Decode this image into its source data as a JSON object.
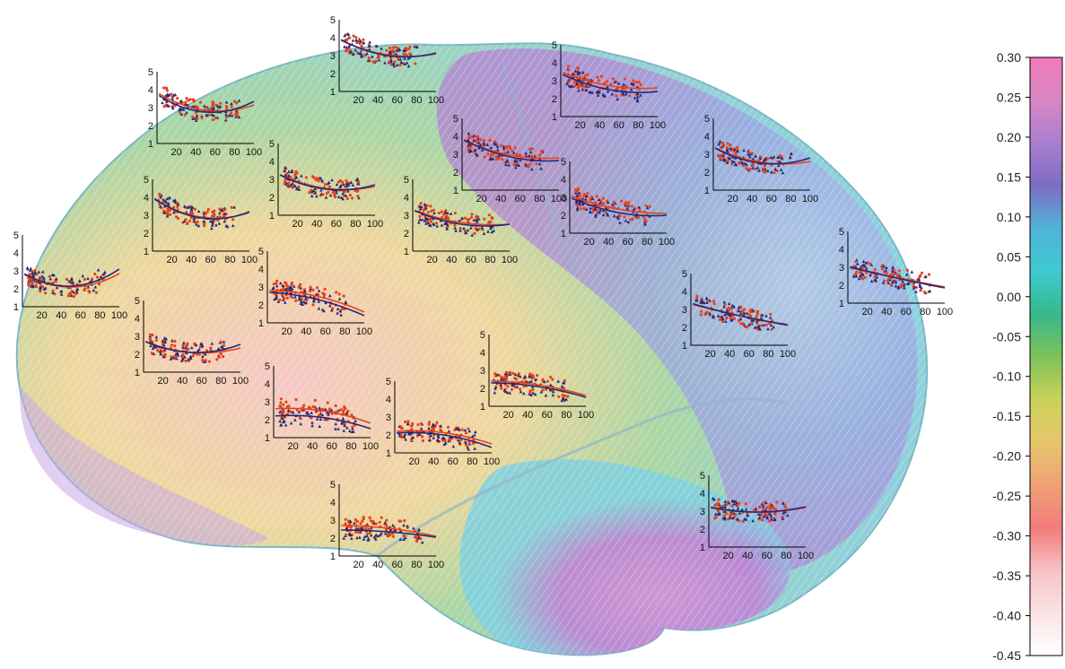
{
  "colors": {
    "series_a": "#e8421c",
    "series_b": "#1f2a7a",
    "axis": "#000000"
  },
  "colorbar": {
    "ticks": [
      "0.30",
      "0.25",
      "0.20",
      "0.15",
      "0.10",
      "0.05",
      "0.00",
      "-0.05",
      "-0.10",
      "-0.15",
      "-0.20",
      "-0.25",
      "-0.30",
      "-0.35",
      "-0.40",
      "-0.45"
    ],
    "range": [
      -0.45,
      0.3
    ],
    "stops": [
      "#f07ab8",
      "#d986c4",
      "#a97fcf",
      "#7e6cc4",
      "#4fb3d8",
      "#3ecad0",
      "#38b88a",
      "#7cc25a",
      "#c9d15a",
      "#e7c66b",
      "#f0a276",
      "#f27b7b",
      "#f7c0c4",
      "#fbe3e6",
      "#ffffff"
    ]
  },
  "chart_data": {
    "type": "scatter",
    "description_axes": {
      "x_ticks": [
        "20",
        "40",
        "60",
        "80",
        "100"
      ],
      "y_ticks": [
        "1",
        "2",
        "3",
        "4",
        "5"
      ],
      "xlim": [
        0,
        100
      ],
      "ylim": [
        1,
        5
      ]
    },
    "panels": [
      {
        "id": "p1",
        "a": [
          3.85,
          -0.033,
          0.00026
        ],
        "b": [
          3.75,
          -0.036,
          0.00032
        ]
      },
      {
        "id": "p2",
        "a": [
          2.85,
          -0.03,
          0.0003
        ],
        "b": [
          2.9,
          -0.032,
          0.00034
        ]
      },
      {
        "id": "p3",
        "a": [
          3.9,
          -0.026,
          0.00018
        ],
        "b": [
          3.95,
          -0.03,
          0.00022
        ]
      },
      {
        "id": "p4",
        "a": [
          2.75,
          -0.022,
          0.00018
        ],
        "b": [
          2.75,
          -0.024,
          0.00022
        ]
      },
      {
        "id": "p5",
        "a": [
          3.95,
          -0.034,
          0.00026
        ],
        "b": [
          4.0,
          -0.038,
          0.0003
        ]
      },
      {
        "id": "p6",
        "a": [
          3.3,
          -0.025,
          0.00018
        ],
        "b": [
          3.3,
          -0.028,
          0.00022
        ]
      },
      {
        "id": "p7",
        "a": [
          3.8,
          -0.024,
          0.00014
        ],
        "b": [
          3.85,
          -0.028,
          0.00016
        ]
      },
      {
        "id": "p8",
        "a": [
          3.3,
          -0.02,
          0.00012
        ],
        "b": [
          3.3,
          -0.024,
          0.00016
        ]
      },
      {
        "id": "p9",
        "a": [
          3.5,
          -0.022,
          0.00013
        ],
        "b": [
          3.4,
          -0.026,
          0.00016
        ]
      },
      {
        "id": "p10",
        "a": [
          3.1,
          -0.02,
          0.0001
        ],
        "b": [
          3.0,
          -0.024,
          0.00014
        ]
      },
      {
        "id": "p11",
        "a": [
          3.4,
          -0.026,
          0.00018
        ],
        "b": [
          3.4,
          -0.03,
          0.00024
        ]
      },
      {
        "id": "p12",
        "a": [
          3.0,
          -0.012,
          1e-05
        ],
        "b": [
          3.05,
          -0.014,
          2e-05
        ]
      },
      {
        "id": "p13",
        "a": [
          3.3,
          -0.014,
          2e-05
        ],
        "b": [
          3.35,
          -0.016,
          4e-05
        ]
      },
      {
        "id": "p14",
        "a": [
          2.8,
          0.0,
          -0.00012
        ],
        "b": [
          2.7,
          -0.002,
          -0.00011
        ]
      },
      {
        "id": "p15",
        "a": [
          2.6,
          0.004,
          -0.00012
        ],
        "b": [
          2.2,
          0.004,
          -0.00011
        ]
      },
      {
        "id": "p16",
        "a": [
          2.2,
          0.004,
          -0.00011
        ],
        "b": [
          2.1,
          0.004,
          -0.00012
        ]
      },
      {
        "id": "p17",
        "a": [
          2.4,
          0.0,
          -8e-05
        ],
        "b": [
          2.3,
          0.0,
          -8e-05
        ]
      },
      {
        "id": "p18",
        "a": [
          3.2,
          -0.01,
          0.0001
        ],
        "b": [
          3.25,
          -0.012,
          0.00012
        ]
      },
      {
        "id": "p19",
        "a": [
          2.7,
          0.0,
          -6e-05
        ],
        "b": [
          2.45,
          0.0,
          -4e-05
        ]
      }
    ]
  }
}
